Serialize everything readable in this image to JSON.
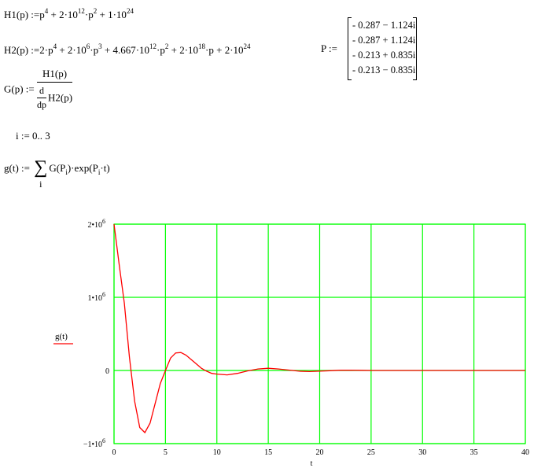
{
  "equations": {
    "h1": {
      "lhs": "H1(p)",
      "assign": ":=",
      "t1": "p",
      "e1": "4",
      "t2": " + 2·10",
      "e2": "12",
      "t3": "·p",
      "e3": "2",
      "t4": " + 1·10",
      "e4": "24"
    },
    "h2": {
      "lhs": "H2(p)",
      "assign": ":=",
      "t1": "2·p",
      "e1": "4",
      "t2": " + 2·10",
      "e2": "6",
      "t3": "·p",
      "e3": "3",
      "t4": " + 4.667·10",
      "e4": "12",
      "t5": "·p",
      "e5": "2",
      "t6": " + 2·10",
      "e6": "18",
      "t7": "·p + 2·10",
      "e7": "24"
    },
    "g": {
      "lhs": "G(p)",
      "assign": ":=",
      "numerator": "H1(p)",
      "d_top": "d",
      "d_bottom": "dp",
      "denominator": "H2(p)"
    },
    "range": {
      "text": "i := 0.. 3"
    },
    "gt": {
      "lhs": "g(t)",
      "assign": ":=",
      "sum_symbol": "∑",
      "sum_index": "i",
      "term1": "G",
      "p1": "P",
      "i1": "i",
      "dot": "·exp",
      "p2": "P",
      "i2": "i",
      "t": "·t"
    },
    "P": {
      "lhs": "P",
      "assign": ":=",
      "rows": [
        "- 0.287 − 1.124i",
        "- 0.287 + 1.124i",
        "- 0.213 + 0.835i",
        "- 0.213 − 0.835i"
      ]
    }
  },
  "chart_data": {
    "type": "line",
    "xlabel": "t",
    "ylabel": "g(t)",
    "xlim": [
      0,
      40
    ],
    "ylim": [
      -1000000,
      2000000
    ],
    "x_ticks": [
      "0",
      "5",
      "10",
      "15",
      "20",
      "25",
      "30",
      "35",
      "40"
    ],
    "y_ticks": [
      {
        "base": "2•10",
        "exp": "6"
      },
      {
        "base": "1•10",
        "exp": "6"
      },
      {
        "base": "0",
        "exp": ""
      },
      {
        "base": "−1•10",
        "exp": "6"
      }
    ],
    "grid": true,
    "colors": {
      "series": "#ff0000",
      "grid": "#00ff00"
    },
    "series": [
      {
        "name": "g(t)",
        "x": [
          0,
          0.5,
          1,
          1.5,
          2,
          2.5,
          3,
          3.5,
          4,
          4.5,
          5,
          5.5,
          6,
          6.5,
          7,
          7.5,
          8,
          8.5,
          9,
          9.5,
          10,
          11,
          12,
          13,
          14,
          15,
          16,
          17,
          18,
          19,
          20,
          21,
          22,
          23,
          24,
          25,
          30,
          35,
          40
        ],
        "y": [
          2000000,
          1450000,
          920000,
          180000,
          -420000,
          -780000,
          -850000,
          -720000,
          -450000,
          -180000,
          0,
          170000,
          240000,
          245000,
          210000,
          150000,
          90000,
          30000,
          -10000,
          -40000,
          -50000,
          -60000,
          -40000,
          -5000,
          20000,
          30000,
          20000,
          5000,
          -10000,
          -15000,
          -10000,
          -3000,
          3000,
          4000,
          2000,
          0,
          0,
          0,
          0
        ]
      }
    ]
  }
}
